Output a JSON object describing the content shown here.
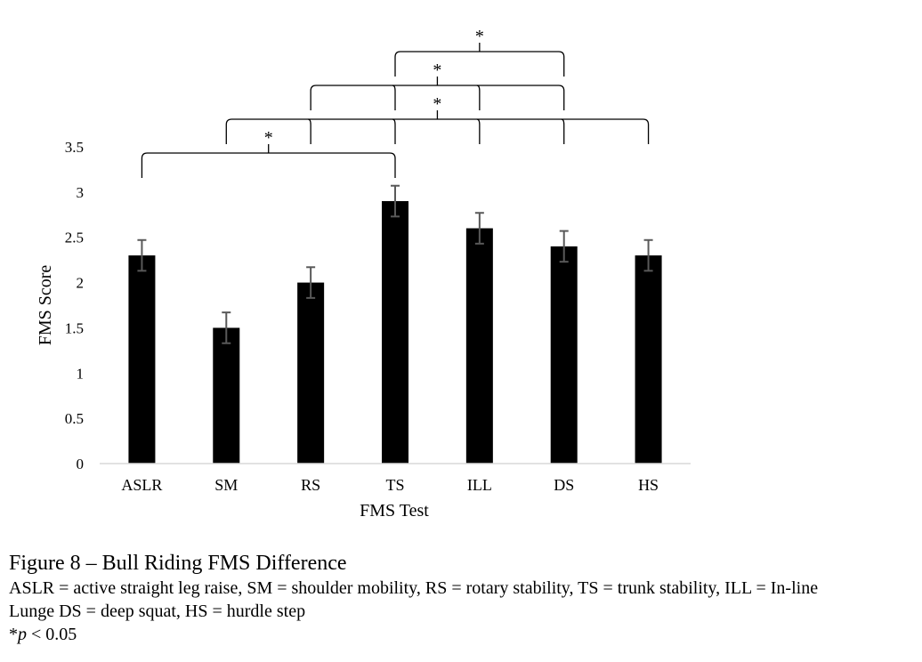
{
  "chart_data": {
    "type": "bar",
    "categories": [
      "ASLR",
      "SM",
      "RS",
      "TS",
      "ILL",
      "DS",
      "HS"
    ],
    "values": [
      2.3,
      1.5,
      2.0,
      2.9,
      2.6,
      2.4,
      2.3
    ],
    "errors": [
      0.17,
      0.17,
      0.17,
      0.17,
      0.17,
      0.17,
      0.17
    ],
    "xlabel": "FMS Test",
    "ylabel": "FMS Score",
    "ylim": [
      0,
      3.5
    ],
    "yticks": [
      "0",
      "0.5",
      "1",
      "1.5",
      "2",
      "2.5",
      "3",
      "3.5"
    ],
    "bar_color": "#000000",
    "error_color": "#595959",
    "grid": false,
    "significance": [
      {
        "from": "ASLR",
        "to": [
          "TS"
        ],
        "label": "*"
      },
      {
        "from": "SM",
        "to": [
          "RS",
          "TS",
          "ILL",
          "DS",
          "HS"
        ],
        "label": "*"
      },
      {
        "from": "RS",
        "to": [
          "TS",
          "ILL",
          "DS"
        ],
        "label": "*"
      },
      {
        "from": "TS",
        "to": [
          "DS"
        ],
        "label": "*"
      }
    ]
  },
  "caption": {
    "title": "Figure 8 – Bull Riding FMS Difference",
    "line1": "ASLR = active straight leg raise, SM = shoulder mobility, RS = rotary stability, TS = trunk stability, ILL = In-line",
    "line2": "Lunge DS = deep squat, HS = hurdle step",
    "p_prefix": "*",
    "p_var": "p",
    "p_rest": " < 0.05"
  }
}
